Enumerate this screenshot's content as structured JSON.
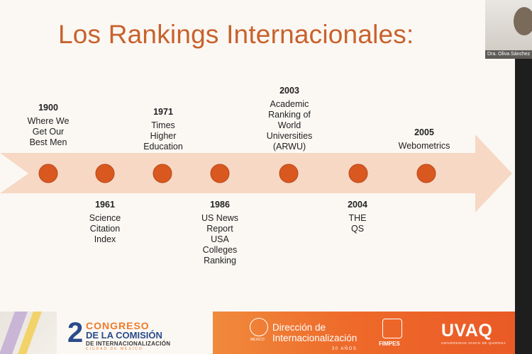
{
  "slide": {
    "title": "Los Rankings Internacionales:",
    "colors": {
      "title": "#c8622c",
      "arrow": "#f7d8c4",
      "dot": "#d9581f",
      "dot_edge": "#b8461a"
    }
  },
  "timeline": {
    "above": [
      {
        "year": "1900",
        "label": "Where We\nGet Our\nBest Men"
      },
      {
        "year": "1971",
        "label": "Times\nHigher\nEducation"
      },
      {
        "year": "2003",
        "label": "Academic\nRanking of\nWorld\nUniversities\n(ARWU)"
      },
      {
        "year": "2005",
        "label": "Webometrics"
      }
    ],
    "below": [
      {
        "year": "1961",
        "label": "Science\nCitation\nIndex"
      },
      {
        "year": "1986",
        "label": "US News\nReport\nUSA\nColleges\nRanking"
      },
      {
        "year": "2004",
        "label": "THE\nQS"
      }
    ]
  },
  "footer": {
    "congreso": {
      "number": "2",
      "line1": "CONGRESO",
      "line2": "DE LA COMISIÓN",
      "line3": "DE INTERNACIONALIZACIÓN",
      "line4": "CIUDAD DE MÉXICO"
    },
    "mexico": "MÉXICO",
    "direccion": {
      "line1": "Dirección de",
      "line2": "Internacionalización",
      "sub": "30 AÑOS"
    },
    "fimpes": "FIMPES",
    "uvaq": "UVAQ",
    "uvaq_sub": "UNIVERSIDAD VASCO DE QUIROGA"
  },
  "webcam": {
    "name": "Dra. Oliva Sánchez"
  }
}
